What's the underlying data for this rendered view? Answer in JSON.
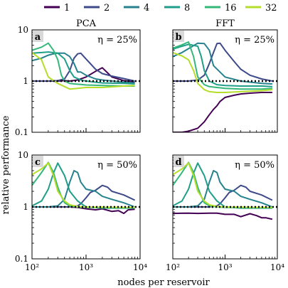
{
  "figure": {
    "ylabel": "relative performance",
    "xlabel": "nodes per reservoir",
    "legend_placement": "top"
  },
  "chart_data": {
    "type": "line",
    "x_scale": "log",
    "y_scale": "log",
    "xlim": [
      100,
      10000
    ],
    "ylim": [
      0.1,
      10
    ],
    "x_ticks": [
      100,
      1000,
      10000
    ],
    "x_tick_labels": [
      "10²",
      "10³",
      "10⁴"
    ],
    "y_ticks": [
      0.1,
      1,
      10
    ],
    "y_tick_labels": [
      "0.1",
      "1",
      "10"
    ],
    "reference_line": {
      "y": 1,
      "style": "dotted",
      "color": "#000000"
    },
    "legend": {
      "labels": [
        "1",
        "2",
        "4",
        "8",
        "16",
        "32"
      ],
      "colors": [
        "#440154",
        "#3e4a89",
        "#26828e",
        "#1f9e89",
        "#35b779",
        "#b5de2b"
      ]
    },
    "panels": [
      {
        "letter": "a",
        "column_title": "PCA",
        "eta_label": "η = 25%",
        "series": [
          {
            "name": "1",
            "x": [
              100,
              150,
              200,
              300,
              400,
              500,
              700,
              1000,
              1500,
              2000,
              3000,
              5000,
              8000
            ],
            "y": [
              1.0,
              1.0,
              1.0,
              1.0,
              1.02,
              1.0,
              1.05,
              1.2,
              1.55,
              1.82,
              1.2,
              1.02,
              0.97
            ]
          },
          {
            "name": "2",
            "x": [
              100,
              200,
              300,
              400,
              500,
              600,
              700,
              800,
              1000,
              1500,
              2000,
              3000,
              5000,
              8000
            ],
            "y": [
              1.0,
              1.0,
              1.02,
              1.1,
              1.6,
              2.8,
              3.4,
              3.5,
              2.7,
              1.7,
              1.4,
              1.25,
              1.12,
              1.0
            ]
          },
          {
            "name": "4",
            "x": [
              100,
              150,
              200,
              250,
              300,
              400,
              500,
              600,
              700,
              800,
              1000,
              1500,
              2000,
              5000,
              8000
            ],
            "y": [
              2.5,
              2.8,
              3.2,
              3.4,
              3.5,
              3.5,
              3.0,
              2.2,
              1.5,
              1.5,
              1.3,
              1.1,
              1.05,
              0.95,
              0.92
            ]
          },
          {
            "name": "8",
            "x": [
              100,
              150,
              200,
              300,
              400,
              500,
              600,
              800,
              1000,
              2000,
              5000,
              8000
            ],
            "y": [
              3.5,
              3.6,
              3.7,
              3.5,
              2.7,
              1.6,
              1.2,
              1.05,
              1.0,
              0.92,
              0.9,
              0.88
            ]
          },
          {
            "name": "16",
            "x": [
              100,
              150,
              200,
              250,
              300,
              350,
              400,
              500,
              600,
              800,
              1000,
              2000,
              5000,
              8000
            ],
            "y": [
              4.0,
              4.6,
              5.5,
              4.0,
              2.6,
              1.3,
              1.0,
              0.9,
              0.88,
              0.86,
              0.84,
              0.82,
              0.8,
              0.8
            ]
          },
          {
            "name": "32",
            "x": [
              100,
              150,
              200,
              300,
              400,
              500,
              700,
              1000,
              2000,
              5000,
              8000
            ],
            "y": [
              3.6,
              2.6,
              1.2,
              0.9,
              0.78,
              0.7,
              0.72,
              0.75,
              0.75,
              0.8,
              0.82
            ]
          }
        ]
      },
      {
        "letter": "b",
        "column_title": "FFT",
        "eta_label": "η = 25%",
        "series": [
          {
            "name": "1",
            "x": [
              100,
              150,
              200,
              300,
              400,
              500,
              600,
              700,
              800,
              1000,
              1500,
              2000,
              3000,
              5000,
              8000
            ],
            "y": [
              0.1,
              0.1,
              0.105,
              0.12,
              0.16,
              0.22,
              0.28,
              0.33,
              0.4,
              0.48,
              0.53,
              0.56,
              0.58,
              0.6,
              0.6
            ]
          },
          {
            "name": "2",
            "x": [
              100,
              200,
              300,
              400,
              500,
              600,
              700,
              800,
              1000,
              1500,
              2000,
              3000,
              5000,
              8000
            ],
            "y": [
              1.0,
              1.0,
              1.05,
              1.3,
              2.2,
              3.6,
              5.4,
              5.5,
              4.0,
              2.4,
              1.7,
              1.3,
              1.1,
              1.0
            ]
          },
          {
            "name": "4",
            "x": [
              100,
              150,
              200,
              300,
              400,
              500,
              600,
              800,
              1000,
              2000,
              5000,
              8000
            ],
            "y": [
              3.0,
              3.6,
              4.3,
              5.5,
              5.4,
              4.0,
              2.0,
              1.5,
              1.2,
              1.0,
              0.9,
              0.88
            ]
          },
          {
            "name": "8",
            "x": [
              100,
              150,
              200,
              300,
              350,
              400,
              500,
              700,
              1000,
              2000,
              5000,
              8000
            ],
            "y": [
              4.2,
              4.8,
              5.2,
              4.8,
              3.0,
              1.6,
              1.0,
              0.85,
              0.82,
              0.8,
              0.8,
              0.78
            ]
          },
          {
            "name": "16",
            "x": [
              100,
              150,
              200,
              250,
              300,
              400,
              500,
              700,
              1000,
              2000,
              5000,
              8000
            ],
            "y": [
              4.4,
              5.1,
              5.8,
              3.0,
              1.2,
              0.85,
              0.78,
              0.75,
              0.72,
              0.7,
              0.7,
              0.72
            ]
          },
          {
            "name": "32",
            "x": [
              100,
              150,
              200,
              250,
              300,
              400,
              500,
              700,
              1000,
              2000,
              5000,
              8000
            ],
            "y": [
              3.6,
              3.1,
              2.6,
              1.6,
              0.9,
              0.68,
              0.62,
              0.6,
              0.6,
              0.62,
              0.65,
              0.68
            ]
          }
        ]
      },
      {
        "letter": "c",
        "column_title": "",
        "eta_label": "η = 50%",
        "series": [
          {
            "name": "1",
            "x": [
              100,
              200,
              300,
              500,
              700,
              1000,
              1500,
              2000,
              3000,
              4000,
              5000,
              6000,
              8000
            ],
            "y": [
              1.0,
              1.0,
              1.0,
              1.0,
              0.98,
              0.92,
              0.88,
              0.92,
              0.82,
              0.85,
              0.75,
              0.88,
              0.9
            ]
          },
          {
            "name": "2",
            "x": [
              100,
              300,
              500,
              700,
              800,
              1000,
              1200,
              1500,
              2000,
              2500,
              3000,
              5000,
              8000
            ],
            "y": [
              1.0,
              1.0,
              1.0,
              1.05,
              1.15,
              1.5,
              1.9,
              2.1,
              2.6,
              2.4,
              2.0,
              1.7,
              1.35
            ]
          },
          {
            "name": "4",
            "x": [
              100,
              200,
              300,
              400,
              500,
              600,
              700,
              800,
              1000,
              1500,
              2000,
              3000,
              5000,
              8000
            ],
            "y": [
              1.0,
              1.0,
              1.05,
              1.4,
              3.0,
              5.0,
              4.6,
              3.0,
              2.2,
              2.0,
              1.6,
              1.4,
              1.2,
              1.0
            ]
          },
          {
            "name": "8",
            "x": [
              100,
              150,
              200,
              250,
              300,
              400,
              500,
              700,
              1000,
              2000,
              5000,
              8000
            ],
            "y": [
              1.05,
              1.3,
              2.2,
              4.5,
              7.0,
              4.0,
              2.0,
              1.3,
              1.0,
              0.95,
              0.95,
              0.95
            ]
          },
          {
            "name": "16",
            "x": [
              100,
              150,
              200,
              250,
              300,
              350,
              400,
              500,
              700,
              1000,
              2000,
              5000,
              8000
            ],
            "y": [
              2.6,
              4.6,
              7.2,
              4.6,
              2.4,
              1.6,
              1.2,
              1.05,
              1.0,
              0.98,
              0.97,
              0.97,
              0.97
            ]
          },
          {
            "name": "32",
            "x": [
              100,
              150,
              200,
              250,
              300,
              400,
              500,
              700,
              1000,
              2000,
              5000,
              8000
            ],
            "y": [
              4.2,
              5.4,
              7.0,
              4.0,
              2.0,
              1.3,
              1.1,
              1.02,
              1.0,
              0.99,
              0.98,
              0.98
            ]
          }
        ]
      },
      {
        "letter": "d",
        "column_title": "",
        "eta_label": "η = 50%",
        "series": [
          {
            "name": "1",
            "x": [
              100,
              200,
              300,
              500,
              700,
              1000,
              1500,
              2000,
              3000,
              4000,
              5000,
              6000,
              8000
            ],
            "y": [
              0.75,
              0.76,
              0.75,
              0.76,
              0.76,
              0.72,
              0.72,
              0.65,
              0.74,
              0.68,
              0.62,
              0.62,
              0.58
            ]
          },
          {
            "name": "2",
            "x": [
              100,
              300,
              500,
              700,
              800,
              1000,
              1200,
              1500,
              2000,
              2500,
              3000,
              5000,
              8000
            ],
            "y": [
              1.0,
              1.0,
              1.0,
              1.05,
              1.15,
              1.5,
              1.9,
              2.1,
              2.6,
              2.4,
              2.0,
              1.7,
              1.35
            ]
          },
          {
            "name": "4",
            "x": [
              100,
              200,
              300,
              400,
              500,
              600,
              700,
              800,
              1000,
              1500,
              2000,
              3000,
              5000,
              8000
            ],
            "y": [
              1.0,
              1.0,
              1.05,
              1.4,
              3.0,
              5.0,
              4.6,
              3.0,
              2.2,
              2.0,
              1.6,
              1.4,
              1.2,
              1.0
            ]
          },
          {
            "name": "8",
            "x": [
              100,
              150,
              200,
              250,
              300,
              400,
              500,
              700,
              1000,
              2000,
              5000,
              8000
            ],
            "y": [
              1.05,
              1.3,
              2.2,
              4.5,
              7.0,
              4.0,
              2.0,
              1.3,
              1.0,
              0.95,
              0.95,
              0.95
            ]
          },
          {
            "name": "16",
            "x": [
              100,
              150,
              200,
              250,
              300,
              350,
              400,
              500,
              700,
              1000,
              2000,
              5000,
              8000
            ],
            "y": [
              2.6,
              4.6,
              7.2,
              4.6,
              2.4,
              1.6,
              1.2,
              1.05,
              1.0,
              0.98,
              0.97,
              0.97,
              0.97
            ]
          },
          {
            "name": "32",
            "x": [
              100,
              150,
              200,
              250,
              300,
              400,
              500,
              700,
              1000,
              2000,
              5000,
              8000
            ],
            "y": [
              4.2,
              5.4,
              7.0,
              4.0,
              2.0,
              1.3,
              1.1,
              1.02,
              1.0,
              0.99,
              0.98,
              0.98
            ]
          }
        ]
      }
    ]
  }
}
